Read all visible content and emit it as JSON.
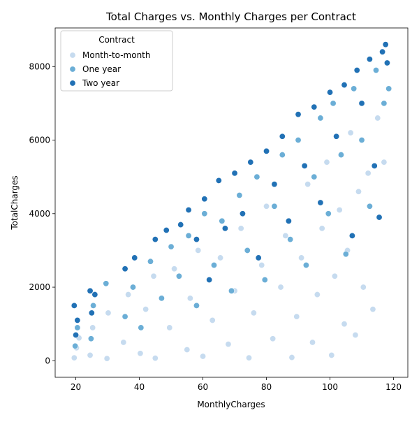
{
  "chart_data": {
    "type": "scatter",
    "title": "Total Charges vs. Monthly Charges per Contract",
    "xlabel": "MonthlyCharges",
    "ylabel": "TotalCharges",
    "xlim": [
      13.5,
      124.5
    ],
    "ylim": [
      -450,
      9050
    ],
    "x_ticks": [
      20,
      40,
      60,
      80,
      100,
      120
    ],
    "y_ticks": [
      0,
      2000,
      4000,
      6000,
      8000
    ],
    "grid": false,
    "legend": {
      "title": "Contract",
      "placement": "top-left"
    },
    "series": [
      {
        "name": "Month-to-month",
        "color": "#c6dbef",
        "points": [
          [
            19.5,
            80
          ],
          [
            20.2,
            350
          ],
          [
            21.0,
            620
          ],
          [
            24.5,
            150
          ],
          [
            25.3,
            900
          ],
          [
            29.8,
            60
          ],
          [
            30.2,
            1300
          ],
          [
            35.0,
            500
          ],
          [
            36.5,
            1800
          ],
          [
            40.3,
            200
          ],
          [
            42.0,
            1400
          ],
          [
            44.5,
            2300
          ],
          [
            45.0,
            70
          ],
          [
            49.5,
            900
          ],
          [
            51.0,
            2500
          ],
          [
            55.0,
            300
          ],
          [
            56.0,
            1700
          ],
          [
            58.5,
            3000
          ],
          [
            60.0,
            120
          ],
          [
            63.0,
            1100
          ],
          [
            65.5,
            2800
          ],
          [
            68.0,
            450
          ],
          [
            70.0,
            1900
          ],
          [
            72.0,
            3600
          ],
          [
            74.5,
            80
          ],
          [
            76.0,
            1300
          ],
          [
            78.5,
            2600
          ],
          [
            80.0,
            4200
          ],
          [
            82.0,
            600
          ],
          [
            84.5,
            2000
          ],
          [
            86.0,
            3400
          ],
          [
            88.0,
            90
          ],
          [
            89.5,
            1200
          ],
          [
            91.0,
            2800
          ],
          [
            93.0,
            4800
          ],
          [
            94.5,
            500
          ],
          [
            96.0,
            1800
          ],
          [
            97.5,
            3600
          ],
          [
            99.0,
            5400
          ],
          [
            100.5,
            150
          ],
          [
            101.5,
            2300
          ],
          [
            103.0,
            4100
          ],
          [
            104.5,
            1000
          ],
          [
            105.5,
            3000
          ],
          [
            106.5,
            6200
          ],
          [
            108.0,
            700
          ],
          [
            109.0,
            4600
          ],
          [
            110.5,
            2000
          ],
          [
            112.0,
            5100
          ],
          [
            113.5,
            1400
          ],
          [
            115.0,
            6600
          ],
          [
            117.0,
            5400
          ]
        ]
      },
      {
        "name": "One year",
        "color": "#6baed6",
        "points": [
          [
            19.8,
            400
          ],
          [
            20.5,
            900
          ],
          [
            24.8,
            600
          ],
          [
            25.5,
            1500
          ],
          [
            29.5,
            2100
          ],
          [
            35.5,
            1200
          ],
          [
            38.0,
            2000
          ],
          [
            40.5,
            900
          ],
          [
            43.5,
            2700
          ],
          [
            47.0,
            1700
          ],
          [
            50.0,
            3100
          ],
          [
            52.5,
            2300
          ],
          [
            55.5,
            3400
          ],
          [
            58.0,
            1500
          ],
          [
            60.5,
            4000
          ],
          [
            63.5,
            2600
          ],
          [
            66.0,
            3800
          ],
          [
            69.0,
            1900
          ],
          [
            71.5,
            4500
          ],
          [
            74.0,
            3000
          ],
          [
            77.0,
            5000
          ],
          [
            79.5,
            2200
          ],
          [
            82.5,
            4200
          ],
          [
            85.0,
            5600
          ],
          [
            87.5,
            3300
          ],
          [
            90.0,
            6000
          ],
          [
            92.5,
            2600
          ],
          [
            95.0,
            5000
          ],
          [
            97.0,
            6600
          ],
          [
            99.5,
            4000
          ],
          [
            101.0,
            7000
          ],
          [
            103.5,
            5600
          ],
          [
            105.0,
            2900
          ],
          [
            107.5,
            7400
          ],
          [
            110.0,
            6000
          ],
          [
            112.5,
            4200
          ],
          [
            114.5,
            7900
          ],
          [
            117.0,
            7000
          ],
          [
            118.5,
            7400
          ]
        ]
      },
      {
        "name": "Two year",
        "color": "#2171b5",
        "points": [
          [
            19.5,
            1500
          ],
          [
            20.0,
            700
          ],
          [
            20.5,
            1100
          ],
          [
            24.5,
            1900
          ],
          [
            25.0,
            1300
          ],
          [
            26.0,
            1800
          ],
          [
            35.5,
            2500
          ],
          [
            38.5,
            2800
          ],
          [
            45.0,
            3300
          ],
          [
            48.5,
            3550
          ],
          [
            53.0,
            3700
          ],
          [
            55.5,
            4100
          ],
          [
            58.0,
            3300
          ],
          [
            60.5,
            4400
          ],
          [
            62.0,
            2200
          ],
          [
            65.0,
            4900
          ],
          [
            67.0,
            3600
          ],
          [
            70.0,
            5100
          ],
          [
            72.5,
            4000
          ],
          [
            75.0,
            5400
          ],
          [
            77.5,
            2800
          ],
          [
            80.0,
            5700
          ],
          [
            82.5,
            4800
          ],
          [
            85.0,
            6100
          ],
          [
            87.0,
            3800
          ],
          [
            90.0,
            6700
          ],
          [
            92.0,
            5300
          ],
          [
            95.0,
            6900
          ],
          [
            97.0,
            4300
          ],
          [
            100.0,
            7300
          ],
          [
            102.0,
            6100
          ],
          [
            104.5,
            7500
          ],
          [
            107.0,
            3400
          ],
          [
            108.5,
            7900
          ],
          [
            110.0,
            7000
          ],
          [
            112.5,
            8200
          ],
          [
            114.0,
            5300
          ],
          [
            115.5,
            3900
          ],
          [
            116.5,
            8400
          ],
          [
            117.5,
            8600
          ],
          [
            118.0,
            8100
          ]
        ]
      }
    ]
  }
}
